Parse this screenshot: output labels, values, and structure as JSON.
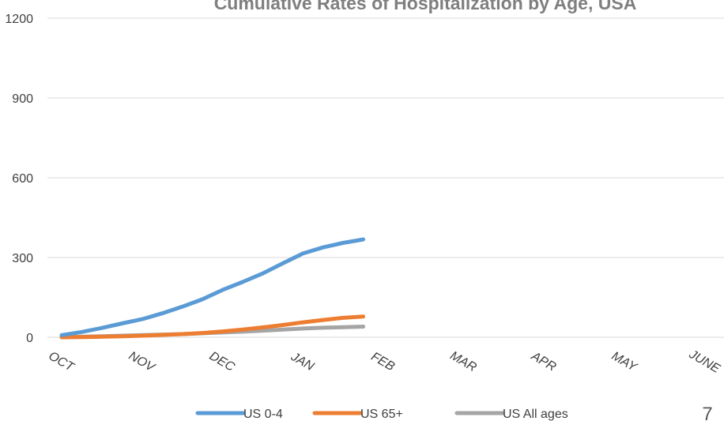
{
  "chart_data": {
    "type": "line",
    "title": "Cumulative Rates of Hospitalization by Age, USA",
    "categories": [
      "OCT",
      "NOV",
      "DEC",
      "JAN",
      "FEB",
      "MAR",
      "APR",
      "MAY",
      "JUNE"
    ],
    "y_ticks": [
      0,
      300,
      600,
      900,
      1200
    ],
    "ylim": [
      0,
      1200
    ],
    "grid": true,
    "legend_position": "bottom",
    "series": [
      {
        "name": "US 0-4",
        "color": "#5b9bd5",
        "x": [
          0,
          0.25,
          0.5,
          0.75,
          1.0,
          1.25,
          1.5,
          1.75,
          2.0,
          2.25,
          2.5,
          2.75,
          3.0,
          3.25,
          3.5,
          3.75
        ],
        "values": [
          8,
          20,
          35,
          52,
          68,
          90,
          115,
          143,
          178,
          208,
          240,
          278,
          315,
          338,
          355,
          368
        ]
      },
      {
        "name": "US 65+",
        "color": "#ed7d31",
        "x": [
          0,
          0.25,
          0.5,
          0.75,
          1.0,
          1.25,
          1.5,
          1.75,
          2.0,
          2.25,
          2.5,
          2.75,
          3.0,
          3.25,
          3.5,
          3.75
        ],
        "values": [
          0,
          1,
          2,
          4,
          6,
          9,
          12,
          16,
          22,
          29,
          37,
          46,
          56,
          65,
          73,
          78
        ]
      },
      {
        "name": "US All ages",
        "color": "#a5a5a5",
        "x": [
          0,
          0.25,
          0.5,
          0.75,
          1.0,
          1.25,
          1.5,
          1.75,
          2.0,
          2.25,
          2.5,
          2.75,
          3.0,
          3.25,
          3.5,
          3.75
        ],
        "values": [
          1,
          2,
          4,
          6,
          8,
          10,
          12,
          15,
          18,
          21,
          25,
          29,
          33,
          36,
          38,
          40
        ]
      }
    ]
  },
  "page_number": "7"
}
